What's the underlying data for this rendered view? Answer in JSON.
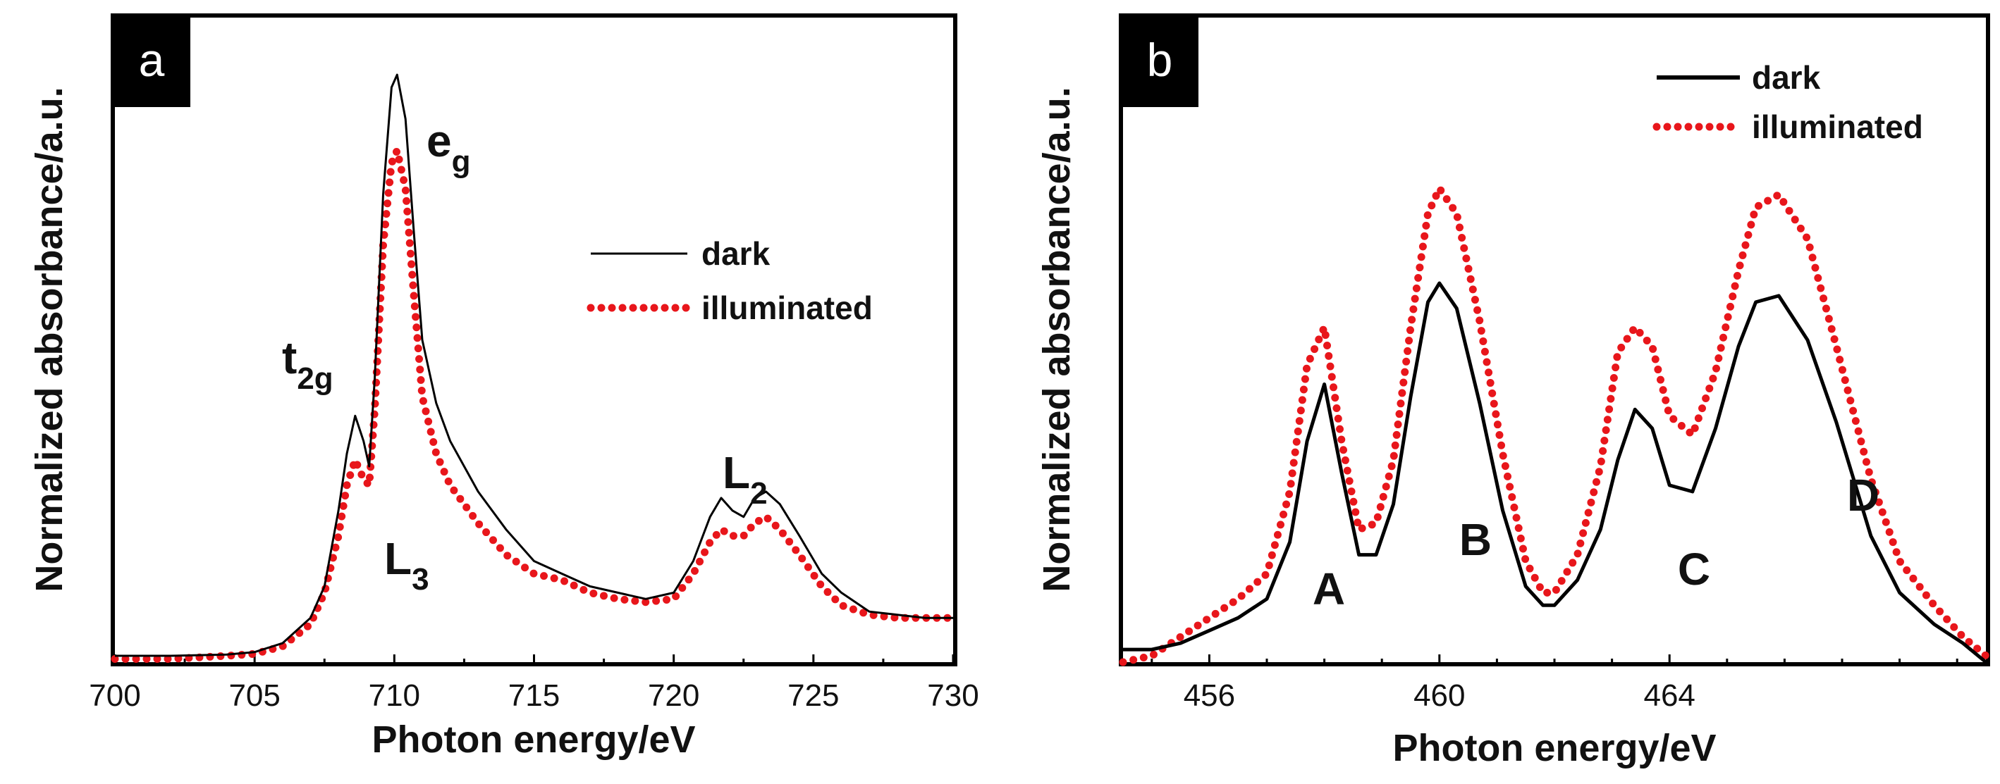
{
  "chart_data": [
    {
      "type": "line",
      "panel_label": "a",
      "xlabel": "Photon energy/eV",
      "ylabel": "Normalized absorbance/a.u.",
      "xlim": [
        700,
        730
      ],
      "ylim": [
        0,
        1.0
      ],
      "xticks": [
        700,
        705,
        710,
        715,
        720,
        725,
        730
      ],
      "legend_position": "right",
      "annotations": {
        "t2g": {
          "main": "t",
          "sub": "2g"
        },
        "eg": {
          "main": "e",
          "sub": "g"
        },
        "L3": {
          "main": "L",
          "sub": "3"
        },
        "L2": {
          "main": "L",
          "sub": "2"
        }
      },
      "series": [
        {
          "name": "dark",
          "color": "#000000",
          "style": "solid",
          "x": [
            700,
            702,
            704,
            705,
            706,
            707,
            707.5,
            708,
            708.3,
            708.6,
            708.9,
            709.1,
            709.3,
            709.6,
            709.9,
            710.1,
            710.4,
            710.7,
            711,
            711.5,
            712,
            713,
            714,
            715,
            716,
            717,
            718,
            719,
            720,
            720.7,
            721.3,
            721.7,
            722.1,
            722.5,
            722.9,
            723.3,
            723.8,
            724.5,
            725.3,
            726,
            727,
            728,
            729,
            730
          ],
          "values": [
            0.01,
            0.01,
            0.012,
            0.016,
            0.03,
            0.07,
            0.12,
            0.24,
            0.33,
            0.39,
            0.35,
            0.31,
            0.45,
            0.74,
            0.91,
            0.93,
            0.86,
            0.68,
            0.51,
            0.41,
            0.35,
            0.27,
            0.21,
            0.16,
            0.14,
            0.12,
            0.11,
            0.1,
            0.11,
            0.16,
            0.23,
            0.26,
            0.24,
            0.23,
            0.26,
            0.27,
            0.25,
            0.2,
            0.14,
            0.11,
            0.08,
            0.075,
            0.07,
            0.07
          ]
        },
        {
          "name": "illuminated",
          "color": "#e8161b",
          "style": "dotted",
          "x": [
            700,
            702,
            704,
            705,
            706,
            707,
            707.5,
            708,
            708.3,
            708.6,
            708.9,
            709.1,
            709.3,
            709.6,
            709.9,
            710.1,
            710.4,
            710.7,
            711,
            711.5,
            712,
            713,
            714,
            715,
            716,
            717,
            718,
            719,
            720,
            720.7,
            721.3,
            721.7,
            722.1,
            722.5,
            722.9,
            723.3,
            723.8,
            724.5,
            725.3,
            726,
            727,
            728,
            729,
            730
          ],
          "values": [
            0.005,
            0.005,
            0.01,
            0.013,
            0.025,
            0.06,
            0.11,
            0.2,
            0.28,
            0.32,
            0.29,
            0.28,
            0.4,
            0.66,
            0.79,
            0.81,
            0.75,
            0.58,
            0.42,
            0.33,
            0.28,
            0.22,
            0.17,
            0.14,
            0.13,
            0.11,
            0.1,
            0.095,
            0.1,
            0.14,
            0.19,
            0.21,
            0.2,
            0.2,
            0.22,
            0.23,
            0.21,
            0.17,
            0.12,
            0.09,
            0.075,
            0.07,
            0.07,
            0.07
          ]
        }
      ]
    },
    {
      "type": "line",
      "panel_label": "b",
      "xlabel": "Photon energy/eV",
      "ylabel": "Normalized absorbance/a.u.",
      "xlim": [
        454.5,
        469.5
      ],
      "ylim": [
        0,
        1.0
      ],
      "xticks": [
        456,
        460,
        464
      ],
      "legend_position": "top-right",
      "annotations": {
        "A": "A",
        "B": "B",
        "C": "C",
        "D": "D"
      },
      "series": [
        {
          "name": "dark",
          "color": "#000000",
          "style": "solid",
          "x": [
            454.5,
            455,
            455.5,
            456,
            456.5,
            457,
            457.4,
            457.7,
            458,
            458.3,
            458.6,
            458.9,
            459.2,
            459.5,
            459.8,
            460,
            460.3,
            460.7,
            461.1,
            461.5,
            461.8,
            462,
            462.4,
            462.8,
            463.1,
            463.4,
            463.7,
            464,
            464.4,
            464.8,
            465.2,
            465.5,
            465.9,
            466.4,
            466.9,
            467.5,
            468,
            468.6,
            469.1,
            469.5
          ],
          "values": [
            0.02,
            0.02,
            0.03,
            0.05,
            0.07,
            0.1,
            0.19,
            0.35,
            0.44,
            0.3,
            0.17,
            0.17,
            0.25,
            0.42,
            0.57,
            0.6,
            0.56,
            0.41,
            0.24,
            0.12,
            0.09,
            0.09,
            0.13,
            0.21,
            0.32,
            0.4,
            0.37,
            0.28,
            0.27,
            0.37,
            0.5,
            0.57,
            0.58,
            0.51,
            0.38,
            0.2,
            0.11,
            0.06,
            0.03,
            0.0
          ]
        },
        {
          "name": "illuminated",
          "color": "#e8161b",
          "style": "dotted",
          "x": [
            454.5,
            455,
            455.5,
            456,
            456.5,
            457,
            457.4,
            457.7,
            458,
            458.3,
            458.6,
            458.9,
            459.2,
            459.5,
            459.8,
            460,
            460.3,
            460.7,
            461.1,
            461.5,
            461.8,
            462,
            462.4,
            462.8,
            463.1,
            463.4,
            463.7,
            464,
            464.4,
            464.8,
            465.2,
            465.5,
            465.9,
            466.4,
            466.9,
            467.5,
            468,
            468.6,
            469.1,
            469.5
          ],
          "values": [
            0.0,
            0.01,
            0.04,
            0.07,
            0.1,
            0.14,
            0.27,
            0.47,
            0.53,
            0.35,
            0.21,
            0.22,
            0.32,
            0.53,
            0.71,
            0.75,
            0.71,
            0.54,
            0.33,
            0.16,
            0.11,
            0.11,
            0.17,
            0.31,
            0.49,
            0.53,
            0.5,
            0.39,
            0.36,
            0.46,
            0.62,
            0.72,
            0.74,
            0.67,
            0.5,
            0.29,
            0.16,
            0.09,
            0.04,
            0.01
          ]
        }
      ]
    }
  ]
}
